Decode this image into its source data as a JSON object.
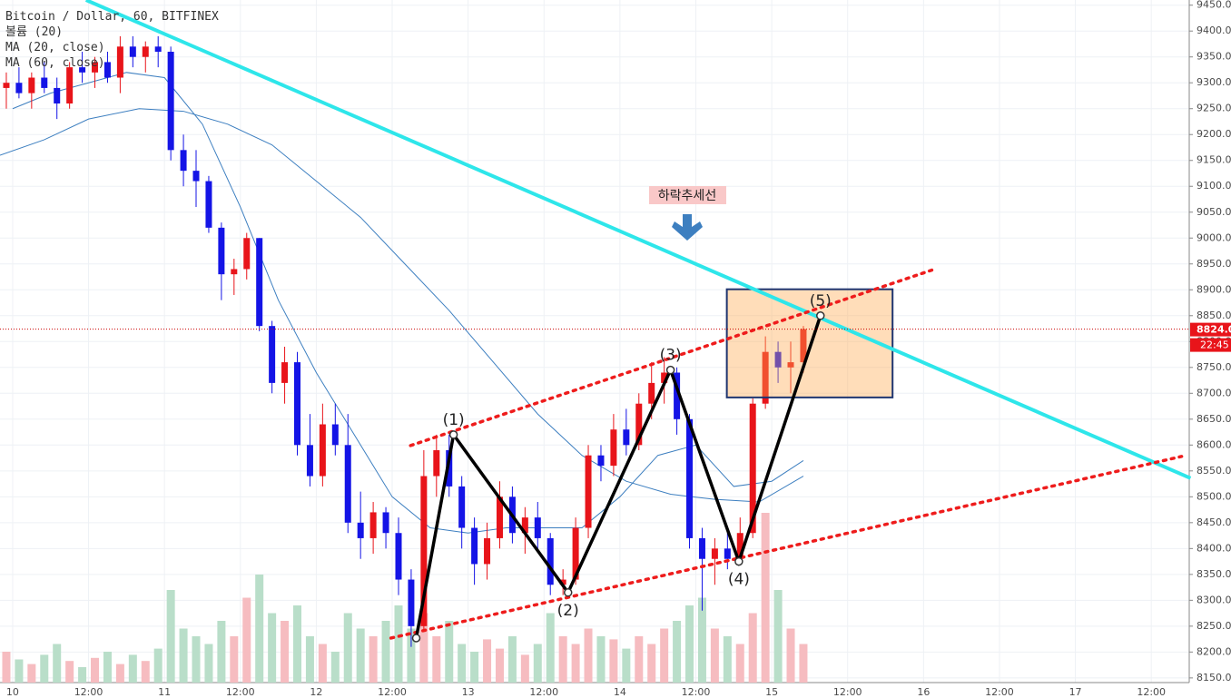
{
  "chart_data": {
    "type": "candlestick",
    "header": [
      "Bitcoin / Dollar, 60, BITFINEX",
      "볼륨 (20)",
      "MA (20, close)",
      "MA (60, close)"
    ],
    "annotation": "하락추세선",
    "xlim": [
      -2,
      186
    ],
    "ylim": [
      8141,
      9460
    ],
    "xticks": [
      {
        "value": 0,
        "label": "10"
      },
      {
        "value": 12,
        "label": "12:00"
      },
      {
        "value": 24,
        "label": "11"
      },
      {
        "value": 36,
        "label": "12:00"
      },
      {
        "value": 48,
        "label": "12"
      },
      {
        "value": 60,
        "label": "12:00"
      },
      {
        "value": 72,
        "label": "13"
      },
      {
        "value": 84,
        "label": "12:00"
      },
      {
        "value": 96,
        "label": "14"
      },
      {
        "value": 108,
        "label": "12:00"
      },
      {
        "value": 120,
        "label": "15"
      },
      {
        "value": 132,
        "label": "12:00"
      },
      {
        "value": 144,
        "label": "16"
      },
      {
        "value": 156,
        "label": "12:00"
      },
      {
        "value": 168,
        "label": "17"
      },
      {
        "value": 180,
        "label": "12:00"
      }
    ],
    "yticks": [
      {
        "value": 8150,
        "label": "8150.0"
      },
      {
        "value": 8200,
        "label": "8200.0"
      },
      {
        "value": 8250,
        "label": "8250.0"
      },
      {
        "value": 8300,
        "label": "8300.0"
      },
      {
        "value": 8350,
        "label": "8350.0"
      },
      {
        "value": 8400,
        "label": "8400.0"
      },
      {
        "value": 8450,
        "label": "8450.0"
      },
      {
        "value": 8500,
        "label": "8500.0"
      },
      {
        "value": 8550,
        "label": "8550.0"
      },
      {
        "value": 8600,
        "label": "8600.0"
      },
      {
        "value": 8650,
        "label": "8650.0"
      },
      {
        "value": 8700,
        "label": "8700.0"
      },
      {
        "value": 8750,
        "label": "8750.0"
      },
      {
        "value": 8800,
        "label": "8800.0"
      },
      {
        "value": 8850,
        "label": "8850.0"
      },
      {
        "value": 8900,
        "label": "8900.0"
      },
      {
        "value": 8950,
        "label": "8950.0"
      },
      {
        "value": 9000,
        "label": "9000.0"
      },
      {
        "value": 9050,
        "label": "9050.0"
      },
      {
        "value": 9100,
        "label": "9100.0"
      },
      {
        "value": 9150,
        "label": "9150.0"
      },
      {
        "value": 9200,
        "label": "9200.0"
      },
      {
        "value": 9250,
        "label": "9250.0"
      },
      {
        "value": 9300,
        "label": "9300.0"
      },
      {
        "value": 9350,
        "label": "9350.0"
      },
      {
        "value": 9400,
        "label": "9400.0"
      },
      {
        "value": 9450,
        "label": "9450.0"
      }
    ],
    "grid": true,
    "up_color": "#e8141a",
    "down_color": "#1414e6",
    "up_volume_color": "#f6bcc0",
    "down_volume_color": "#b9dec9",
    "candles": {
      "x": [
        -1,
        1,
        3,
        5,
        7,
        9,
        11,
        13,
        15,
        17,
        19,
        21,
        23,
        25,
        27,
        29,
        31,
        33,
        35,
        37,
        39,
        41,
        43,
        45,
        47,
        49,
        51,
        53,
        55,
        57,
        59,
        61,
        63,
        65,
        67,
        69,
        71,
        73,
        75,
        77,
        79,
        81,
        83,
        85,
        87,
        89,
        91,
        93,
        95,
        97,
        99,
        101,
        103,
        105,
        107,
        109,
        111,
        113,
        115,
        117,
        119,
        121,
        123,
        125
      ],
      "open": [
        9290,
        9300,
        9280,
        9310,
        9290,
        9260,
        9330,
        9320,
        9340,
        9310,
        9370,
        9350,
        9370,
        9360,
        9170,
        9130,
        9110,
        9020,
        8930,
        8940,
        9000,
        8830,
        8720,
        8760,
        8600,
        8540,
        8640,
        8600,
        8450,
        8420,
        8470,
        8430,
        8340,
        8250,
        8540,
        8590,
        8520,
        8440,
        8370,
        8420,
        8500,
        8430,
        8460,
        8420,
        8330,
        8340,
        8440,
        8580,
        8560,
        8630,
        8600,
        8680,
        8720,
        8740,
        8650,
        8420,
        8380,
        8400,
        8380,
        8430,
        8680,
        8780,
        8750,
        8760
      ],
      "high": [
        9320,
        9330,
        9320,
        9340,
        9310,
        9340,
        9360,
        9350,
        9360,
        9390,
        9390,
        9380,
        9390,
        9370,
        9200,
        9170,
        9120,
        9030,
        8960,
        9010,
        9000,
        8840,
        8790,
        8780,
        8660,
        8680,
        8680,
        8660,
        8510,
        8490,
        8480,
        8460,
        8360,
        8590,
        8620,
        8620,
        8540,
        8460,
        8450,
        8530,
        8520,
        8480,
        8490,
        8430,
        8360,
        8460,
        8600,
        8600,
        8660,
        8670,
        8700,
        8760,
        8770,
        8750,
        8660,
        8440,
        8420,
        8440,
        8460,
        8690,
        8810,
        8800,
        8800,
        8830
      ],
      "low": [
        9250,
        9270,
        9250,
        9280,
        9230,
        9250,
        9300,
        9290,
        9300,
        9280,
        9330,
        9320,
        9330,
        9150,
        9100,
        9060,
        9010,
        8880,
        8890,
        8920,
        8820,
        8700,
        8680,
        8580,
        8520,
        8520,
        8580,
        8430,
        8380,
        8390,
        8400,
        8310,
        8210,
        8240,
        8500,
        8500,
        8400,
        8330,
        8340,
        8400,
        8410,
        8390,
        8400,
        8310,
        8310,
        8330,
        8420,
        8530,
        8540,
        8580,
        8590,
        8650,
        8680,
        8620,
        8400,
        8280,
        8330,
        8360,
        8370,
        8420,
        8670,
        8720,
        8700,
        8740
      ],
      "close": [
        9300,
        9280,
        9310,
        9290,
        9260,
        9330,
        9320,
        9340,
        9310,
        9370,
        9350,
        9370,
        9360,
        9170,
        9130,
        9110,
        9020,
        8930,
        8940,
        9000,
        8830,
        8720,
        8760,
        8600,
        8540,
        8640,
        8600,
        8450,
        8420,
        8470,
        8430,
        8340,
        8250,
        8540,
        8590,
        8520,
        8440,
        8370,
        8420,
        8500,
        8430,
        8460,
        8420,
        8330,
        8340,
        8440,
        8580,
        8560,
        8630,
        8600,
        8680,
        8720,
        8740,
        8650,
        8420,
        8380,
        8400,
        8380,
        8430,
        8680,
        8780,
        8750,
        8760,
        8824
      ],
      "volume": [
        20,
        15,
        12,
        18,
        25,
        14,
        10,
        16,
        20,
        12,
        18,
        14,
        22,
        60,
        35,
        30,
        25,
        40,
        30,
        55,
        70,
        45,
        40,
        50,
        30,
        25,
        20,
        45,
        35,
        30,
        40,
        50,
        35,
        45,
        30,
        40,
        25,
        20,
        28,
        22,
        30,
        18,
        25,
        45,
        30,
        25,
        35,
        30,
        28,
        22,
        30,
        25,
        35,
        40,
        50,
        55,
        35,
        30,
        25,
        45,
        110,
        60,
        35,
        25
      ]
    },
    "series": [
      {
        "name": "MA (20, close)",
        "color": "#3d7fc0",
        "x": [
          0,
          6,
          12,
          18,
          24,
          30,
          36,
          42,
          48,
          54,
          60,
          66,
          72,
          78,
          84,
          90,
          96,
          102,
          108,
          114,
          120,
          125
        ],
        "values": [
          9250,
          9280,
          9300,
          9320,
          9310,
          9220,
          9060,
          8880,
          8740,
          8620,
          8500,
          8440,
          8430,
          8440,
          8440,
          8440,
          8500,
          8580,
          8600,
          8520,
          8530,
          8570
        ]
      },
      {
        "name": "MA (60, close)",
        "color": "#3d7fc0",
        "x": [
          -2,
          5,
          12,
          20,
          27,
          34,
          41,
          48,
          55,
          62,
          69,
          76,
          83,
          90,
          97,
          104,
          111,
          118,
          125
        ],
        "values": [
          9160,
          9190,
          9230,
          9250,
          9245,
          9220,
          9180,
          9110,
          9040,
          8950,
          8860,
          8760,
          8660,
          8580,
          8530,
          8505,
          8495,
          8490,
          8540
        ]
      }
    ],
    "trendline": {
      "color": "#2ee6ea",
      "x": [
        11.6,
        186.2
      ],
      "values": [
        9460,
        8536
      ]
    },
    "channel": [
      {
        "color": "#ee1c1c",
        "x": [
          62.9,
          145.3
        ],
        "values": [
          8599,
          8938
        ]
      },
      {
        "color": "#ee1c1c",
        "x": [
          59.8,
          184.8
        ],
        "values": [
          8227,
          8578
        ]
      }
    ],
    "wave": {
      "color": "#000000",
      "x": [
        63.8,
        69.7,
        87.8,
        104,
        114.8,
        127.7
      ],
      "values": [
        8227,
        8620,
        8315,
        8745,
        8375,
        8850
      ],
      "labels": [
        null,
        "(1)",
        "(2)",
        "(3)",
        "(4)",
        "(5)"
      ]
    },
    "box": {
      "x": [
        112.9,
        139.1
      ],
      "values": [
        8901,
        8692
      ]
    },
    "last_price": {
      "value": 8824,
      "label": "8824.0"
    },
    "time_label": "22:45"
  }
}
